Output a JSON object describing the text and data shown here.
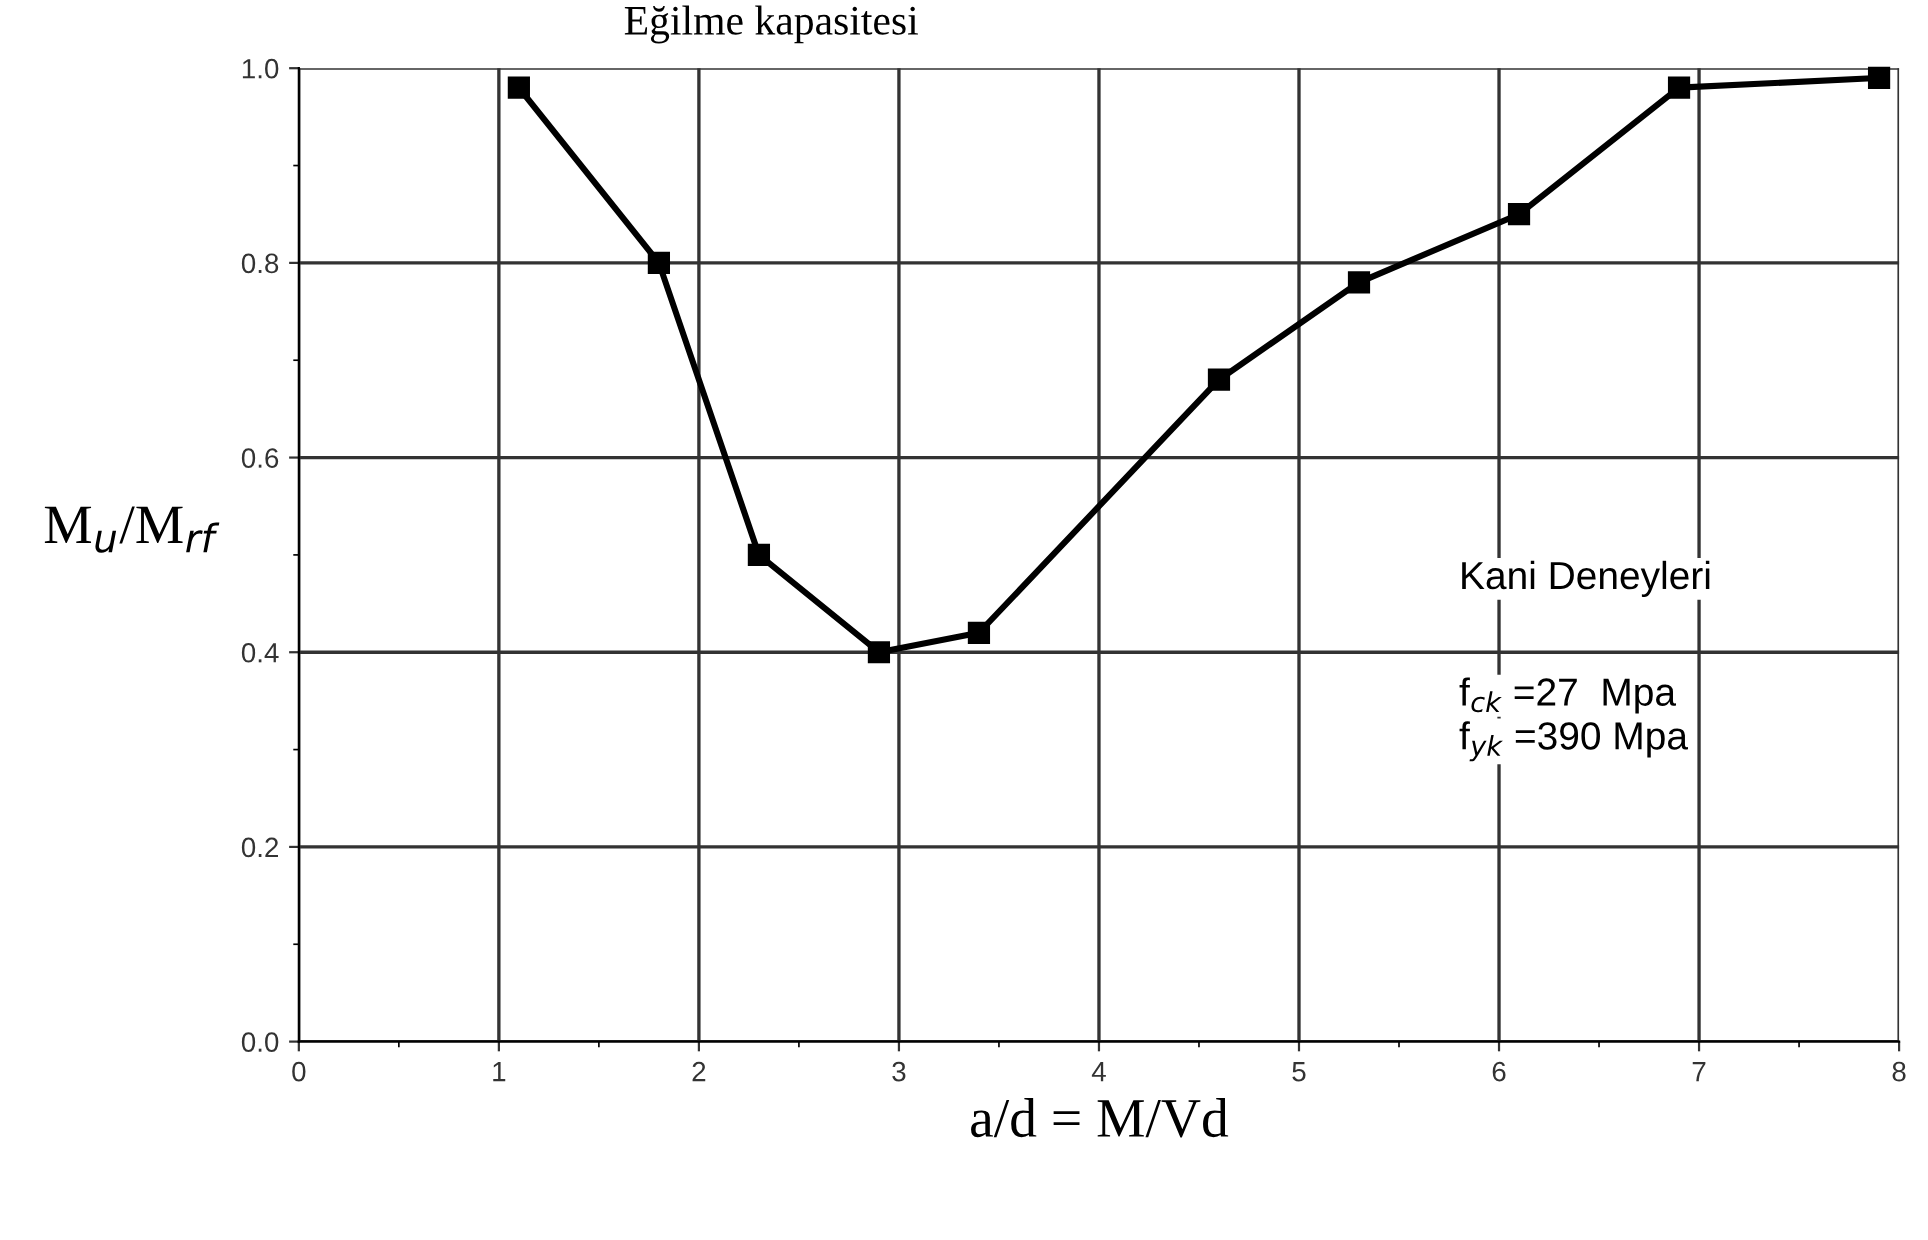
{
  "chart_data": {
    "type": "line",
    "title": "Eğilme kapasitesi",
    "xlabel": "a/d = M/Vd",
    "ylabel": "M$_{u}$/M$_{rf}$",
    "x": [
      1.1,
      1.8,
      2.3,
      2.9,
      3.4,
      4.6,
      5.3,
      6.1,
      6.9,
      7.9
    ],
    "series": [
      {
        "color": "#000000",
        "values": [
          0.98,
          0.8,
          0.5,
          0.4,
          0.42,
          0.68,
          0.78,
          0.85,
          0.98,
          0.99
        ]
      }
    ],
    "xlim": [
      0,
      8
    ],
    "xticks": [
      0,
      1,
      2,
      3,
      4,
      5,
      6,
      7,
      8
    ],
    "ylim": [
      0,
      1
    ],
    "yticks": [
      {
        "value": 0,
        "label": "0.0"
      },
      {
        "value": 0.2,
        "label": "0.2"
      },
      {
        "value": 0.4,
        "label": "0.4"
      },
      {
        "value": 0.6,
        "label": "0.6"
      },
      {
        "value": 0.8,
        "label": "0.8"
      },
      {
        "value": 1,
        "label": "1.0"
      }
    ],
    "grid": true,
    "marker": "square",
    "line_style": "solid",
    "legend": false,
    "annotations": [
      "Kani Deneyleri",
      "f$_{ck}$ =27  Mpa",
      "f$_{yk}$ =390 Mpa"
    ]
  }
}
